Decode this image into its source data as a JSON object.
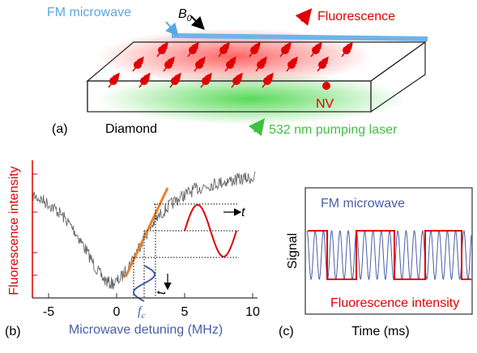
{
  "panel_a": {
    "label": "(a)",
    "microwave": "FM microwave",
    "field": "B",
    "field_sub": "0",
    "fluorescence": "Fluorescence",
    "nv": "NV",
    "material": "Diamond",
    "laser": "532 nm pumping laser"
  },
  "panel_b": {
    "label": "(b)",
    "y_label": "Fluorescence intensity",
    "x_label": "Microwave detuning (MHz)",
    "x_ticks": [
      "-5",
      "0",
      "5",
      "10"
    ],
    "fc": "f",
    "fc_sub": "c",
    "t_right": "t",
    "t_down": "t"
  },
  "panel_c": {
    "label": "(c)",
    "y_label": "Signal",
    "x_label": "Time (ms)",
    "top": "FM microwave",
    "bottom": "Fluorescence intensity"
  }
}
